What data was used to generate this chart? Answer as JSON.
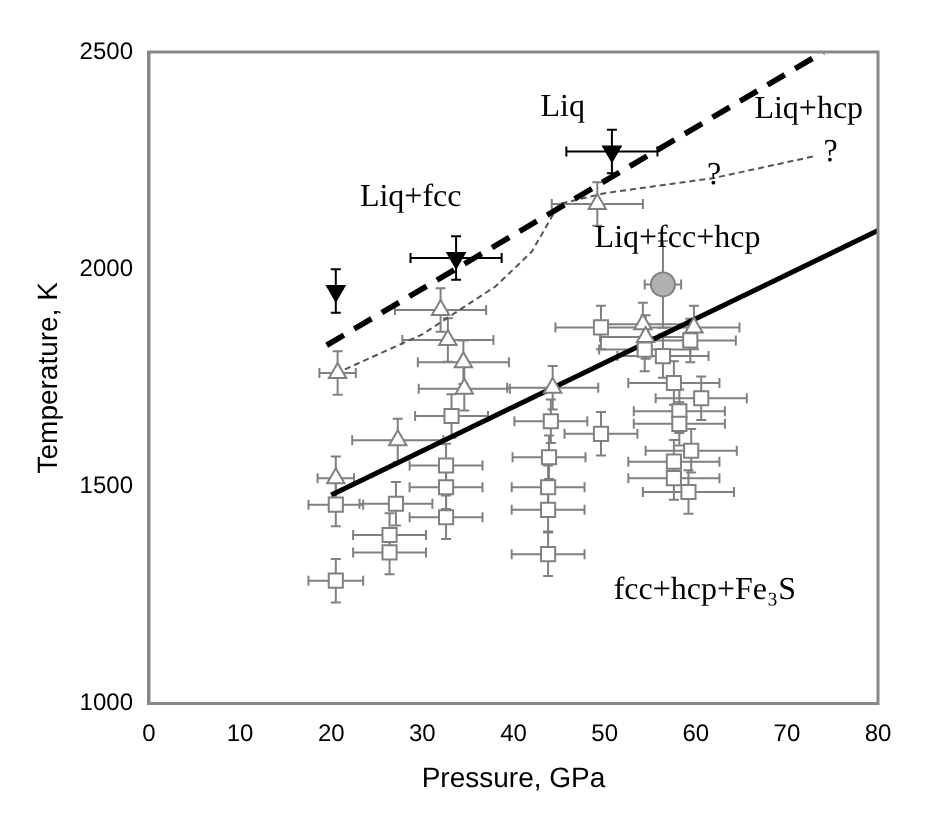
{
  "chart_data": {
    "type": "scatter",
    "xlabel": "Pressure, GPa",
    "ylabel": "Temperature, K",
    "xlim": [
      0,
      80
    ],
    "xticks": [
      0,
      10,
      20,
      30,
      40,
      50,
      60,
      70,
      80
    ],
    "ylim": [
      1000,
      2500
    ],
    "yticks": [
      1000,
      1500,
      2000,
      2500
    ],
    "grid": false,
    "legend": false,
    "series": [
      {
        "type": "scatter",
        "marker": "square",
        "color": "#808080",
        "x": [
          20.5,
          20.5,
          27.1,
          26.4,
          26.4,
          33.2,
          32.6,
          32.6,
          32.6,
          44.1,
          49.6,
          43.9,
          43.8,
          43.8,
          43.8,
          58.2,
          60.6,
          58.2,
          59.5,
          57.6,
          57.6,
          59.2,
          49.6,
          56.4,
          54.4,
          59.4,
          57.6
        ],
        "values": [
          1458,
          1283,
          1460,
          1388,
          1348,
          1662,
          1548,
          1498,
          1429,
          1650,
          1621,
          1567,
          1498,
          1446,
          1344,
          1673,
          1703,
          1644,
          1582,
          1557,
          1519,
          1487,
          1866,
          1800,
          1815,
          1836,
          1738
        ],
        "errors": [
          50,
          50,
          50,
          50,
          50,
          50,
          50,
          50,
          50,
          50,
          50,
          50,
          50,
          50,
          50,
          50,
          50,
          50,
          50,
          50,
          50,
          50,
          50,
          50,
          50,
          50,
          50
        ],
        "xerrors": [
          3,
          3,
          4,
          4,
          4,
          4,
          4,
          4,
          4,
          4,
          4,
          4,
          4,
          4,
          4,
          5,
          5,
          5,
          5,
          5,
          5,
          5,
          5,
          5,
          5,
          5,
          5
        ]
      },
      {
        "type": "scatter",
        "marker": "triangle",
        "color": "#808080",
        "x": [
          20.7,
          32,
          32.8,
          34.5,
          34.6,
          49.2,
          44.3,
          54.2,
          54.5,
          59.8,
          27.3,
          20.5
        ],
        "values": [
          1761,
          1906,
          1837,
          1786,
          1725,
          2150,
          1727,
          1873,
          1844,
          1866,
          1606,
          1519
        ],
        "errors": [
          50,
          50,
          50,
          50,
          50,
          50,
          50,
          50,
          50,
          50,
          50,
          50
        ],
        "xerrors": [
          2,
          5,
          5,
          5,
          5,
          5,
          5,
          5,
          5,
          5,
          5,
          2
        ]
      },
      {
        "type": "scatter",
        "marker": "triangle-down",
        "color": "#000000",
        "x": [
          20.5,
          33.7,
          50.8
        ],
        "values": [
          1950,
          2026,
          2271
        ],
        "errors": [
          50,
          50,
          50
        ],
        "xerrors": [
          null,
          5,
          5
        ]
      },
      {
        "type": "scatter",
        "marker": "circle",
        "color": "#b0b0b0",
        "x": [
          56.4
        ],
        "values": [
          1965
        ],
        "errors": [
          100
        ],
        "xerrors": [
          2
        ]
      },
      {
        "type": "line",
        "marker": "none",
        "line_style": "solid",
        "color": "#000000",
        "x": [
          20,
          80
        ],
        "values": [
          1480,
          2089
        ]
      },
      {
        "type": "line",
        "marker": "none",
        "line_style": "dashed",
        "color": "#000000",
        "x": [
          19.5,
          74
        ],
        "values": [
          1825,
          2500
        ]
      },
      {
        "type": "line",
        "marker": "none",
        "line_style": "dotted",
        "color": "#555555",
        "x": [
          20.5,
          30,
          38,
          42,
          45,
          50,
          62,
          73
        ],
        "values": [
          1760,
          1850,
          1960,
          2040,
          2150,
          2175,
          2210,
          2260
        ]
      }
    ],
    "annotations": [
      "Liq",
      "Liq+hcp",
      "Liq+fcc",
      "Liq+fcc+hcp",
      "fcc+hcp+Fe₃S",
      {
        "text": "?",
        "x": 62,
        "y": 2215
      },
      "?"
    ]
  }
}
